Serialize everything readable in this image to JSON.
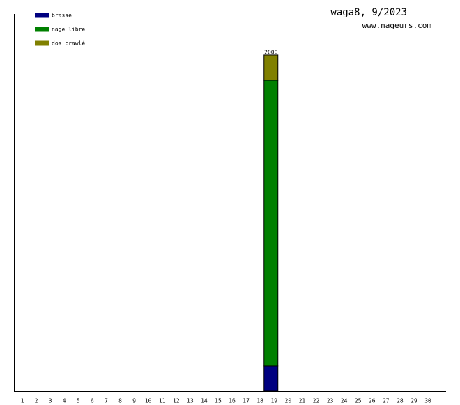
{
  "chart_data": {
    "type": "stacked-bar",
    "title": "waga8, 9/2023",
    "subtitle": "www.nageurs.com",
    "categories": [
      "1",
      "2",
      "3",
      "4",
      "5",
      "6",
      "7",
      "8",
      "9",
      "10",
      "11",
      "12",
      "13",
      "14",
      "15",
      "16",
      "17",
      "18",
      "19",
      "20",
      "21",
      "22",
      "23",
      "24",
      "25",
      "26",
      "27",
      "28",
      "29",
      "30"
    ],
    "series": [
      {
        "name": "brasse",
        "color": "#000080",
        "values": [
          null,
          null,
          null,
          null,
          null,
          null,
          null,
          null,
          null,
          null,
          null,
          null,
          null,
          null,
          null,
          null,
          null,
          null,
          150,
          null,
          null,
          null,
          null,
          null,
          null,
          null,
          null,
          null,
          null,
          null
        ]
      },
      {
        "name": "nage libre",
        "color": "#008000",
        "values": [
          null,
          null,
          null,
          null,
          null,
          null,
          null,
          null,
          null,
          null,
          null,
          null,
          null,
          null,
          null,
          null,
          null,
          null,
          1700,
          null,
          null,
          null,
          null,
          null,
          null,
          null,
          null,
          null,
          null,
          null
        ]
      },
      {
        "name": "dos crawlé",
        "color": "#808000",
        "values": [
          null,
          null,
          null,
          null,
          null,
          null,
          null,
          null,
          null,
          null,
          null,
          null,
          null,
          null,
          null,
          null,
          null,
          null,
          150,
          null,
          null,
          null,
          null,
          null,
          null,
          null,
          null,
          null,
          null,
          null
        ]
      }
    ],
    "totals": [
      null,
      null,
      null,
      null,
      null,
      null,
      null,
      null,
      null,
      null,
      null,
      null,
      null,
      null,
      null,
      null,
      null,
      null,
      2000,
      null,
      null,
      null,
      null,
      null,
      null,
      null,
      null,
      null,
      null,
      null
    ],
    "ylim": [
      0,
      2245
    ],
    "legend": "top-left"
  }
}
